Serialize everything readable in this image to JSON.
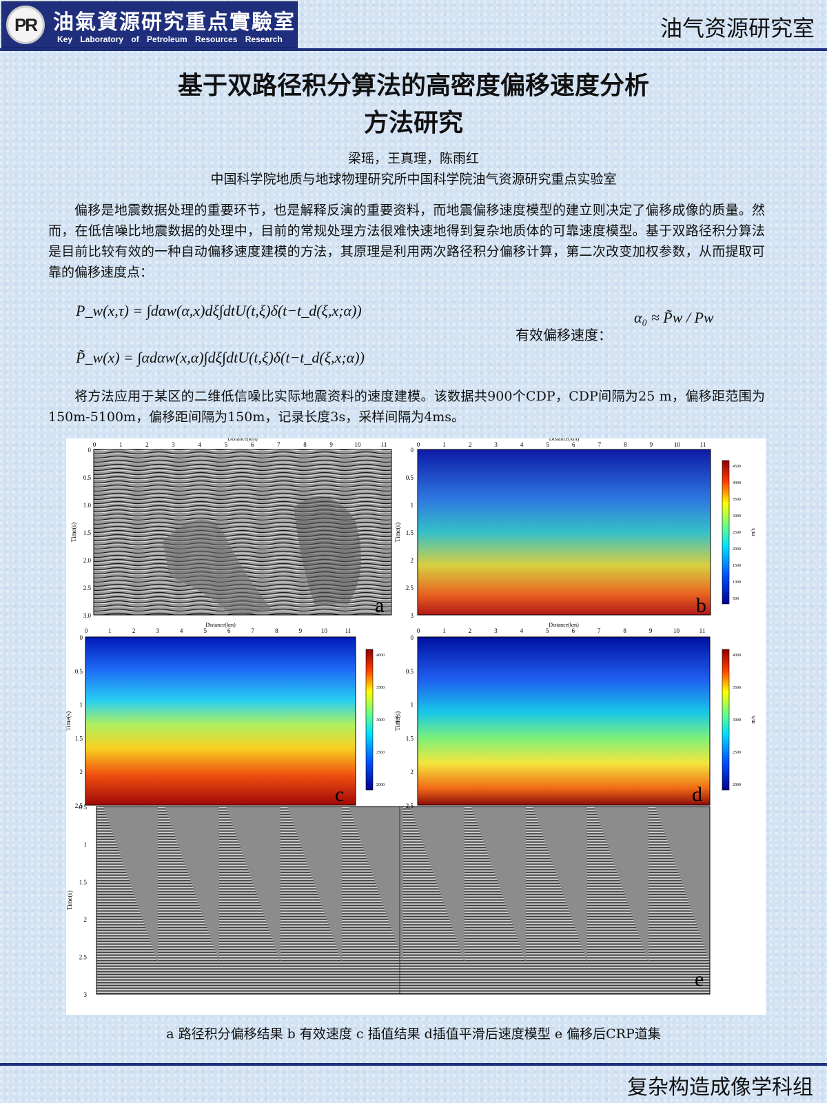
{
  "header": {
    "logo_mark": "PR",
    "logo_cn": "油氣資源研究重点實驗室",
    "logo_en": "Key Laboratory of Petroleum Resources Research",
    "lab_name": "油气资源研究室"
  },
  "title": {
    "line1": "基于双路径积分算法的高密度偏移速度分析",
    "line2": "方法研究"
  },
  "authors": "梁瑶，王真理，陈雨红",
  "affiliation": "中国科学院地质与地球物理研究所中国科学院油气资源研究重点实验室",
  "abstract": "偏移是地震数据处理的重要环节，也是解释反演的重要资料，而地震偏移速度模型的建立则决定了偏移成像的质量。然而，在低信噪比地震数据的处理中，目前的常规处理方法很难快速地得到复杂地质体的可靠速度模型。基于双路径积分算法是目前比较有效的一种自动偏移速度建模的方法，其原理是利用两次路径积分偏移计算，第二次改变加权参数，从而提取可靠的偏移速度点：",
  "formulas": {
    "f1": "P_w(x,τ) = ∫dαw(α,x)dξ∫dtU(t,ξ)δ(t−t_d(ξ,x;α))",
    "f2": "P̃_w(x) = ∫αdαw(x,α)∫dξ∫dtU(t,ξ)δ(t−t_d(ξ,x;α))",
    "velocity_label": "有效偏移速度：",
    "velocity_formula": "α₀ ≈ P̃w / Pw"
  },
  "application": "将方法应用于某区的二维低信噪比实际地震资料的速度建模。该数据共900个CDP，CDP间隔为25 m，偏移距范围为150m-5100m，偏移距间隔为150m，记录长度3s，采样间隔为4ms。",
  "figure": {
    "x_label": "Distance(km)",
    "y_label": "Time(s)",
    "unit_label": "m/s",
    "x_ticks": [
      "0",
      "1",
      "2",
      "3",
      "4",
      "5",
      "6",
      "7",
      "8",
      "9",
      "10",
      "11"
    ],
    "a_time_ticks": [
      "0",
      "0.5",
      "1.0",
      "1.5",
      "2.0",
      "2.5",
      "3.0"
    ],
    "time_ticks": [
      "0",
      "0.5",
      "1",
      "1.5",
      "2",
      "2.5",
      "3"
    ],
    "cd_time_ticks": [
      "0",
      "0.5",
      "1",
      "1.5",
      "2",
      "2.5"
    ],
    "b_color_ticks": [
      "4500",
      "4000",
      "3500",
      "3000",
      "2500",
      "2000",
      "1500",
      "1000",
      "500"
    ],
    "cd_color_ticks": [
      "4000",
      "3500",
      "3000",
      "2500",
      "2000"
    ],
    "panel_labels": {
      "a": "a",
      "b": "b",
      "c": "c",
      "d": "d",
      "e": "e"
    }
  },
  "caption": "a 路径积分偏移结果 b 有效速度 c 插值结果 d插值平滑后速度模型  e 偏移后CRP道集",
  "footer": "复杂构造成像学科组",
  "colors": {
    "brand_blue": "#1f2f7d",
    "jet_low": "#00008f",
    "jet_high": "#8f0000"
  }
}
